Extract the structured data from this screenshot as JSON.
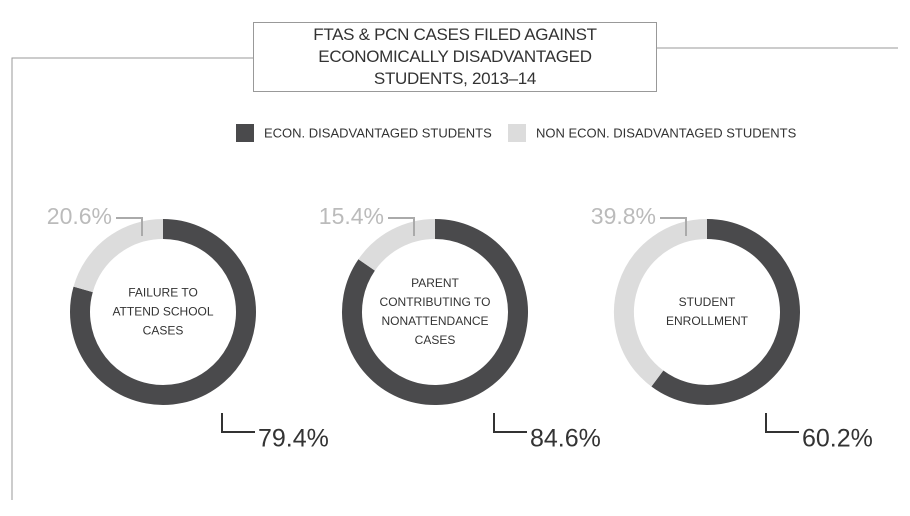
{
  "chart_data": {
    "type": "pie",
    "donut": true,
    "title": "FTAS & PCN CASES FILED AGAINST ECONOMICALLY DISADVANTAGED STUDENTS, 2013–14",
    "categories": [
      "ECON. DISADVANTAGED STUDENTS",
      "NON ECON. DISADVANTAGED STUDENTS"
    ],
    "colors": [
      "#4a4a4c",
      "#dcdcdc"
    ],
    "charts": [
      {
        "label": "FAILURE TO ATTEND SCHOOL CASES",
        "values": [
          79.4,
          20.6
        ],
        "value_labels": [
          "79.4%",
          "20.6%"
        ]
      },
      {
        "label": "PARENT CONTRIBUTING TO NONATTENDANCE CASES",
        "values": [
          84.6,
          15.4
        ],
        "value_labels": [
          "84.6%",
          "15.4%"
        ]
      },
      {
        "label": "STUDENT ENROLLMENT",
        "values": [
          60.2,
          39.8
        ],
        "value_labels": [
          "60.2%",
          "39.8%"
        ]
      }
    ]
  }
}
